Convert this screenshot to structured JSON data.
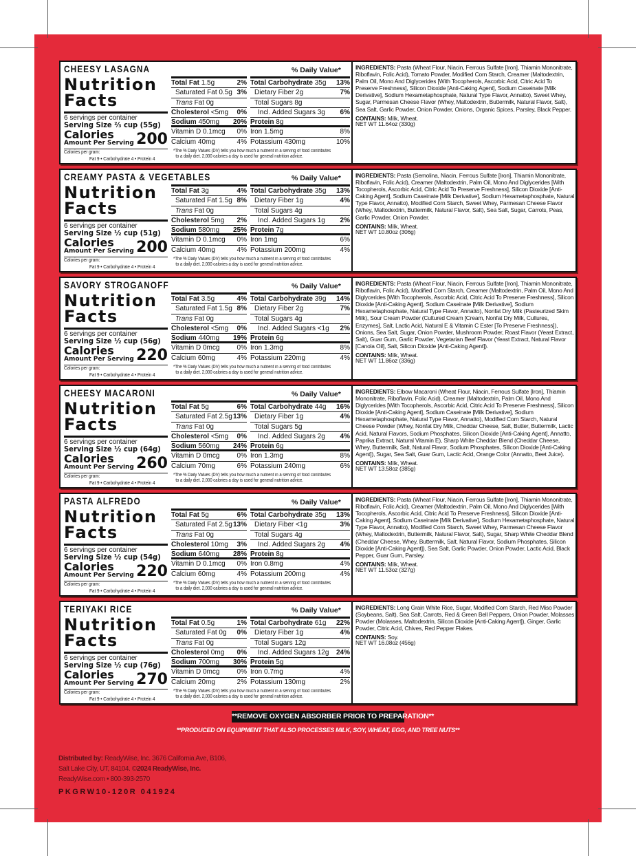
{
  "colors": {
    "background": "#e42a3a",
    "panel": "#ffffff",
    "text": "#111111"
  },
  "labels": {
    "daily_value": "% Daily Value*",
    "nutrition": "Nutrition",
    "facts": "Facts",
    "calories": "Calories",
    "amount_per_serving": "Amount Per Serving",
    "calories_per_gram": "Calories per gram:",
    "calories_per_gram_values": "Fat 9  •  Carbohydrate 4  •  Protein 4",
    "footnote_1": "*The % Daily Values (DV) tells you how much a nutrient in a serving of food contributes",
    "footnote_2": "to a daily diet. 2,000 calories a day is used for general nutrition advice.",
    "ingredients": "INGREDIENTS:",
    "contains": "CONTAINS:",
    "left_rows": [
      "Total Fat",
      "Saturated Fat",
      "Fat",
      "Cholesterol",
      "Sodium",
      "Vitamin D",
      "Calcium"
    ],
    "trans": "Trans",
    "right_rows": [
      "Total Carbohydrate",
      "Dietary Fiber",
      "Total Sugars",
      "Incl. Added Sugars",
      "Protein",
      "Iron",
      "Potassium"
    ]
  },
  "products": [
    {
      "name": "CHEESY LASAGNA",
      "servings": "6 servings per container",
      "serving_size": "Serving Size ⅔ cup (55g)",
      "calories": "200",
      "left": [
        [
          "1.5g",
          "2%"
        ],
        [
          "0.5g",
          "3%"
        ],
        [
          "0g",
          ""
        ],
        [
          "<5mg",
          "0%"
        ],
        [
          "450mg",
          "20%"
        ],
        [
          "0.1mcg",
          "0%"
        ],
        [
          "40mg",
          "4%"
        ]
      ],
      "right": [
        [
          "35g",
          "13%"
        ],
        [
          "2g",
          "7%"
        ],
        [
          "8g",
          ""
        ],
        [
          "3g",
          "6%"
        ],
        [
          "8g",
          ""
        ],
        [
          "1.5mg",
          "8%"
        ],
        [
          "430mg",
          "10%"
        ]
      ],
      "ingredients": "Pasta (Wheat Flour, Niacin, Ferrous Sulfate [Iron], Thiamin Mononitrate, Riboflavin, Folic Acid), Tomato Powder, Modified Corn Starch, Creamer (Maltodextrin, Palm Oil, Mono And Diglycerides [With Tocopherols, Ascorbic Acid, Citric Acid To Preserve Freshness], Silicon Dioxide [Anti-Caking Agent], Sodium Caseinate [Milk Derivative], Sodium Hexametaphosphate, Natural Type Flavor, Annatto), Sweet Whey, Sugar, Parmesan Cheese Flavor (Whey, Maltodextrin, Buttermilk, Natural Flavor, Salt), Sea Salt, Garlic Powder, Onion Powder, Onions, Organic Spices, Parsley, Black Pepper.",
      "contains": "Milk, Wheat.",
      "net_wt": "NET WT 11.64oz (330g)"
    },
    {
      "name": "CREAMY PASTA & VEGETABLES",
      "servings": "6 servings per container",
      "serving_size": "Serving Size ½ cup (51g)",
      "calories": "200",
      "left": [
        [
          "3g",
          "4%"
        ],
        [
          "1.5g",
          "8%"
        ],
        [
          "0g",
          ""
        ],
        [
          "5mg",
          "2%"
        ],
        [
          "580mg",
          "25%"
        ],
        [
          "0.1mcg",
          "0%"
        ],
        [
          "40mg",
          "4%"
        ]
      ],
      "right": [
        [
          "35g",
          "13%"
        ],
        [
          "1g",
          "4%"
        ],
        [
          "4g",
          ""
        ],
        [
          "1g",
          "2%"
        ],
        [
          "7g",
          ""
        ],
        [
          "1mg",
          "6%"
        ],
        [
          "200mg",
          "4%"
        ]
      ],
      "ingredients": "Pasta (Semolina, Niacin, Ferrous Sulfate [Iron], Thiamin Mononitrate, Riboflavin, Folic Acid), Creamer (Maltodextrin, Palm Oil, Mono And Diglycerides [With Tocopherols, Ascorbic Acid, Citric Acid To Preserve Freshness], Silicon Dioxide [Anti-Caking Agent], Sodium Caseinate [Milk Derivative], Sodium Hexametaphosphate, Natural Type Flavor, Annatto), Modified Corn Starch, Sweet Whey, Parmesan Cheese Flavor (Whey, Maltodextrin, Buttermilk, Natural Flavor, Salt), Sea Salt, Sugar, Carrots, Peas, Garlic Powder, Onion Powder.",
      "contains": "Milk, Wheat.",
      "net_wt": "NET WT 10.80oz (306g)"
    },
    {
      "name": "SAVORY STROGANOFF",
      "servings": "6 servings per container",
      "serving_size": "Serving Size ½ cup (56g)",
      "calories": "220",
      "left": [
        [
          "3.5g",
          "4%"
        ],
        [
          "1.5g",
          "8%"
        ],
        [
          "0g",
          ""
        ],
        [
          "<5mg",
          "0%"
        ],
        [
          "440mg",
          "19%"
        ],
        [
          "0mcg",
          "0%"
        ],
        [
          "60mg",
          "4%"
        ]
      ],
      "right": [
        [
          "39g",
          "14%"
        ],
        [
          "2g",
          "7%"
        ],
        [
          "4g",
          ""
        ],
        [
          "<1g",
          "2%"
        ],
        [
          "6g",
          ""
        ],
        [
          "1.3mg",
          "8%"
        ],
        [
          "220mg",
          "4%"
        ]
      ],
      "ingredients": "Pasta (Wheat Flour, Niacin, Ferrous Sulfate [Iron], Thiamin Mononitrate, Riboflavin, Folic Acid), Modified Corn Starch, Creamer (Maltodextrin, Palm Oil, Mono And Diglycerides [With Tocopherols, Ascorbic Acid, Citric Acid To Preserve Freshness], Silicon Dioxide [Anti-Caking Agent], Sodium Caseinate [Milk Derivative], Sodium Hexametaphosphate, Natural Type Flavor, Annatto), Nonfat Dry Milk (Pasteurized Skim Milk), Sour Cream Powder (Cultured Cream [Cream, Nonfat Dry Milk, Cultures, Enzymes], Salt, Lactic Acid, Natural E & Vitamin C Ester [To Preserve Freshness]), Onions, Sea Salt, Sugar, Onion Powder, Mushroom Powder, Roast Flavor (Yeast Extract, Salt), Guar Gum, Garlic Powder, Vegetarian Beef Flavor (Yeast Extract, Natural Flavor [Canola Oil], Salt, Silicon Dioxide [Anti-Caking Agent]).",
      "contains": "Milk, Wheat.",
      "net_wt": "NET WT 11.86oz (336g)"
    },
    {
      "name": "CHEESY MACARONI",
      "servings": "6 servings per container",
      "serving_size": "Serving Size ½ cup (64g)",
      "calories": "260",
      "left": [
        [
          "5g",
          "6%"
        ],
        [
          "2.5g",
          "13%"
        ],
        [
          "0g",
          ""
        ],
        [
          "<5mg",
          "0%"
        ],
        [
          "560mg",
          "24%"
        ],
        [
          "0mcg",
          "0%"
        ],
        [
          "70mg",
          "6%"
        ]
      ],
      "right": [
        [
          "44g",
          "16%"
        ],
        [
          "1g",
          "4%"
        ],
        [
          "5g",
          ""
        ],
        [
          "2g",
          "4%"
        ],
        [
          "6g",
          ""
        ],
        [
          "1.3mg",
          "8%"
        ],
        [
          "240mg",
          "6%"
        ]
      ],
      "ingredients": "Elbow Macaroni (Wheat Flour, Niacin, Ferrous Sulfate [Iron], Thiamin Mononitrate, Riboflavin, Folic Acid), Creamer (Maltodextrin, Palm Oil, Mono And Diglycerides [With Tocopherols, Ascorbic Acid, Citric Acid To Preserve Freshness], Silicon Dioxide [Anti-Caking Agent], Sodium Caseinate [Milk Derivative], Sodium Hexametaphosphate, Natural Type Flavor, Annatto), Modified Corn Starch, Natural Cheese Powder (Whey, Nonfat Dry Milk, Cheddar Cheese, Salt, Butter, Buttermilk, Lactic Acid, Natural Flavors, Sodium Phosphates, Silicon Dioxide [Anti-Caking Agent], Annatto, Paprika Extract, Natural Vitamin E), Sharp White Cheddar Blend (Cheddar Cheese, Whey, Buttermilk, Salt, Natural Flavor, Sodium Phosphates, Silicon Dioxide [Anti-Caking Agent]), Sugar, Sea Salt, Guar Gum, Lactic Acid, Orange Color (Annatto, Beet Juice).",
      "contains": "Milk, Wheat.",
      "net_wt": "NET WT 13.58oz (385g)"
    },
    {
      "name": "PASTA ALFREDO",
      "servings": "6 servings per container",
      "serving_size": "Serving Size ½ cup (54g)",
      "calories": "220",
      "left": [
        [
          "5g",
          "6%"
        ],
        [
          "2.5g",
          "13%"
        ],
        [
          "0g",
          ""
        ],
        [
          "10mg",
          "3%"
        ],
        [
          "640mg",
          "28%"
        ],
        [
          "0.1mcg",
          "0%"
        ],
        [
          "60mg",
          "4%"
        ]
      ],
      "right": [
        [
          "35g",
          "13%"
        ],
        [
          "<1g",
          "3%"
        ],
        [
          "4g",
          ""
        ],
        [
          "2g",
          "4%"
        ],
        [
          "8g",
          ""
        ],
        [
          "0.8mg",
          "4%"
        ],
        [
          "200mg",
          "4%"
        ]
      ],
      "ingredients": "Pasta (Wheat Flour, Niacin, Ferrous Sulfate [Iron], Thiamin Mononitrate, Riboflavin, Folic Acid), Creamer (Maltodextrin, Palm Oil, Mono And Diglycerides [With Tocopherols, Ascorbic Acid, Citric Acid To Preserve Freshness], Silicon Dioxide [Anti-Caking Agent], Sodium Caseinate [Milk Derivative], Sodium Hexametaphosphate, Natural Type Flavor, Annatto), Modified Corn Starch, Sweet Whey, Parmesan Cheese Flavor (Whey, Maltodextrin, Buttermilk, Natural Flavor, Salt), Sugar, Sharp White Cheddar Blend (Cheddar Cheese, Whey, Buttermilk, Salt, Natural Flavor, Sodium Phosphates, Silicon Dioxide [Anti-Caking Agent]), Sea Salt, Garlic Powder, Onion Powder, Lactic Acid, Black Pepper, Guar Gum, Parsley.",
      "contains": "Milk, Wheat.",
      "net_wt": "NET WT 11.53oz (327g)"
    },
    {
      "name": "TERIYAKI RICE",
      "servings": "6 servings per container",
      "serving_size": "Serving Size ½ cup (76g)",
      "calories": "270",
      "left": [
        [
          "0.5g",
          "1%"
        ],
        [
          "0g",
          "0%"
        ],
        [
          "0g",
          ""
        ],
        [
          "0mg",
          "0%"
        ],
        [
          "700mg",
          "30%"
        ],
        [
          "0mcg",
          "0%"
        ],
        [
          "20mg",
          "2%"
        ]
      ],
      "right": [
        [
          "61g",
          "22%"
        ],
        [
          "1g",
          "4%"
        ],
        [
          "12g",
          ""
        ],
        [
          "12g",
          "24%"
        ],
        [
          "5g",
          ""
        ],
        [
          "0.7mg",
          "4%"
        ],
        [
          "130mg",
          "2%"
        ]
      ],
      "ingredients": "Long Grain White Rice, Sugar, Modified Corn Starch, Red Miso Powder (Soybeans, Salt), Sea Salt, Carrots, Red & Green Bell Peppers, Onion Powder, Molasses Powder (Molasses, Maltodextrin, Silicon Dioxide [Anti-Caking Agent]), Ginger, Garlic Powder, Citric Acid, Chives, Red Pepper Flakes.",
      "contains": "Soy.",
      "net_wt": "NET WT 16.08oz (456g)"
    }
  ],
  "footer": {
    "warning": "**REMOVE OXYGEN ABSORBER PRIOR TO PREPARATION**",
    "equipment": "**PRODUCED ON EQUIPMENT THAT ALSO PROCESSES MILK, SOY, WHEAT, EGG,  AND TREE NUTS**",
    "distributed_label": "Distributed by:",
    "distributed_text": "ReadyWise, Inc. 3676 California Ave, B106,",
    "address": "Salt Lake City, UT, 84104. ©",
    "copyright": "2024 ReadyWise, Inc.",
    "contact": "ReadyWise.com  •  800-393-2570",
    "package_code": "PKGRW10-120R 041924"
  }
}
